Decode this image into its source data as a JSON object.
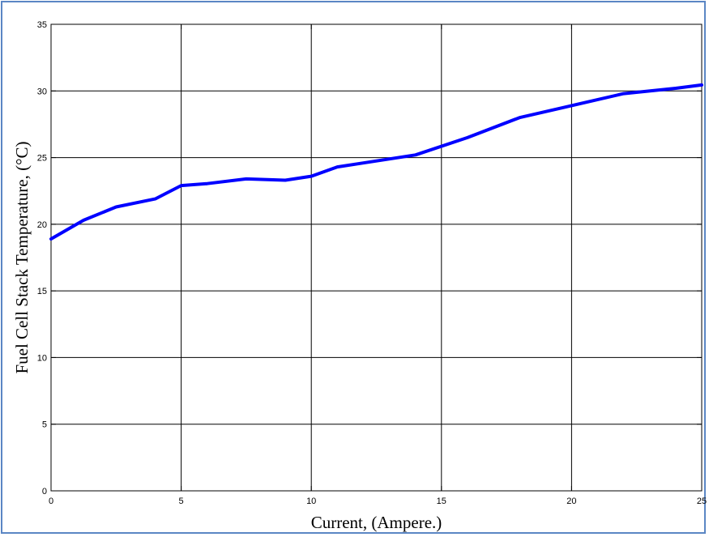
{
  "chart_data": {
    "type": "line",
    "title": "",
    "xlabel": "Current, (Ampere.)",
    "ylabel": "Fuel Cell Stack Temperature, (°C)",
    "xlim": [
      0,
      25
    ],
    "ylim": [
      0,
      35
    ],
    "xticks": [
      0,
      5,
      10,
      15,
      20,
      25
    ],
    "yticks": [
      0,
      5,
      10,
      15,
      20,
      25,
      30,
      35
    ],
    "grid": true,
    "line_color": "#0000ff",
    "series": [
      {
        "x": [
          0,
          1.25,
          2.5,
          4,
          5,
          6,
          7.5,
          9,
          10,
          11,
          12,
          14,
          16,
          18,
          20,
          22,
          24,
          25
        ],
        "y": [
          18.9,
          20.3,
          21.3,
          21.9,
          22.9,
          23.05,
          23.4,
          23.3,
          23.6,
          24.3,
          24.6,
          25.2,
          26.5,
          28.0,
          28.9,
          29.8,
          30.2,
          30.45
        ]
      }
    ]
  }
}
